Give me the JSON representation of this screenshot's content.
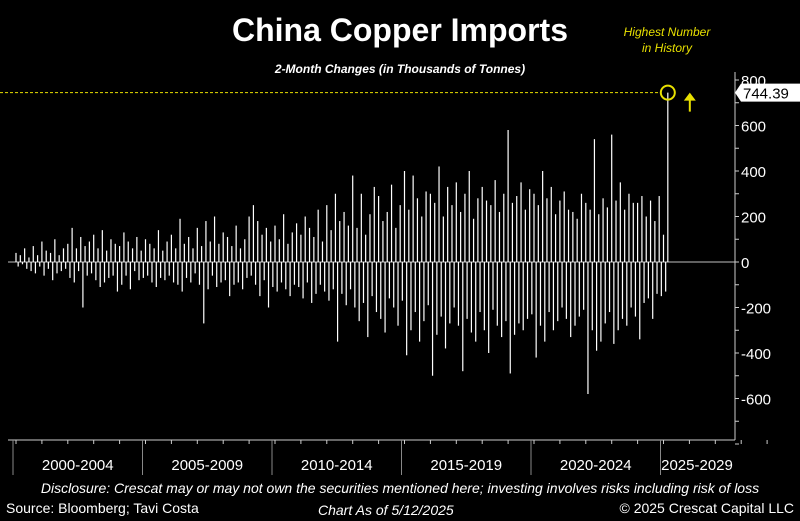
{
  "chart_data": {
    "type": "bar",
    "title": "China Copper Imports",
    "subtitle": "2-Month Changes (in Thousands of Tonnes)",
    "annotation": "Highest Number in History",
    "annotation_lines": [
      "Highest Number",
      "in History"
    ],
    "last_value_label": "744.39",
    "ylim": [
      -800,
      800
    ],
    "yticks": [
      800,
      600,
      400,
      200,
      0,
      -200,
      -400,
      -600
    ],
    "x_start": "2000-01",
    "x_step": "month",
    "xtick_labels": [
      "2000-2004",
      "2005-2009",
      "2010-2014",
      "2015-2019",
      "2020-2024",
      "2025-2029"
    ],
    "colors": {
      "bars": "#ffffff",
      "highlight": "#e8e000"
    },
    "values": [
      40,
      -20,
      30,
      -10,
      60,
      -30,
      20,
      -40,
      70,
      -50,
      30,
      -20,
      90,
      -60,
      50,
      -30,
      40,
      -80,
      100,
      -50,
      30,
      -40,
      60,
      -30,
      80,
      -70,
      150,
      -90,
      60,
      -40,
      110,
      -200,
      70,
      -60,
      90,
      -50,
      120,
      -80,
      60,
      -110,
      140,
      -90,
      50,
      -70,
      100,
      -60,
      80,
      -130,
      70,
      -100,
      130,
      -60,
      90,
      -120,
      60,
      -40,
      110,
      -80,
      50,
      -70,
      100,
      -60,
      80,
      -90,
      60,
      -110,
      140,
      -70,
      50,
      -80,
      90,
      -60,
      120,
      -90,
      60,
      -100,
      190,
      -130,
      80,
      -70,
      110,
      -90,
      60,
      -50,
      150,
      -100,
      70,
      -270,
      180,
      -120,
      90,
      -60,
      200,
      -110,
      80,
      -90,
      130,
      -80,
      110,
      -150,
      70,
      -100,
      160,
      -90,
      60,
      -120,
      100,
      -70,
      200,
      -60,
      250,
      -100,
      180,
      -150,
      120,
      -80,
      150,
      -200,
      90,
      -110,
      160,
      -130,
      100,
      -90,
      210,
      -120,
      80,
      -150,
      130,
      -100,
      170,
      -110,
      120,
      -160,
      200,
      -90,
      150,
      -180,
      110,
      -140,
      230,
      -100,
      90,
      -130,
      250,
      -170,
      140,
      -120,
      300,
      -350,
      180,
      -140,
      220,
      -190,
      160,
      -120,
      380,
      -200,
      150,
      -260,
      300,
      -180,
      120,
      -330,
      210,
      -150,
      330,
      -220,
      290,
      -250,
      180,
      -310,
      220,
      -160,
      340,
      -200,
      150,
      -280,
      250,
      -170,
      400,
      -410,
      230,
      -300,
      380,
      -220,
      280,
      -350,
      200,
      -260,
      310,
      -190,
      300,
      -500,
      260,
      -320,
      420,
      -240,
      200,
      -380,
      330,
      -270,
      250,
      -200,
      350,
      -280,
      220,
      -480,
      300,
      -250,
      400,
      -310,
      190,
      -350,
      280,
      -220,
      330,
      -300,
      270,
      -400,
      250,
      -210,
      360,
      -280,
      220,
      -330,
      300,
      -260,
      580,
      -490,
      260,
      -320,
      290,
      -270,
      350,
      -300,
      230,
      -250,
      320,
      -230,
      300,
      -420,
      250,
      -280,
      400,
      -350,
      280,
      -220,
      330,
      -300,
      210,
      -260,
      270,
      -200,
      310,
      -250,
      230,
      -330,
      220,
      -280,
      190,
      -240,
      300,
      -210,
      260,
      -580,
      230,
      -300,
      540,
      -390,
      210,
      -350,
      280,
      -270,
      240,
      -220,
      560,
      -360,
      270,
      -300,
      350,
      -250,
      230,
      -280,
      300,
      -200,
      260,
      -240,
      260,
      -340,
      290,
      -180,
      200,
      -160,
      270,
      -250,
      180,
      -140,
      290,
      -150,
      120,
      -130,
      744.39
    ]
  },
  "footer": {
    "disclosure": "Disclosure: Crescat may or may not own the securities mentioned here; investing involves risks including risk of loss",
    "source": "Source: Bloomberg; Tavi Costa",
    "as_of": "Chart As of 5/12/2025",
    "copyright": "© 2025 Crescat Capital LLC"
  }
}
